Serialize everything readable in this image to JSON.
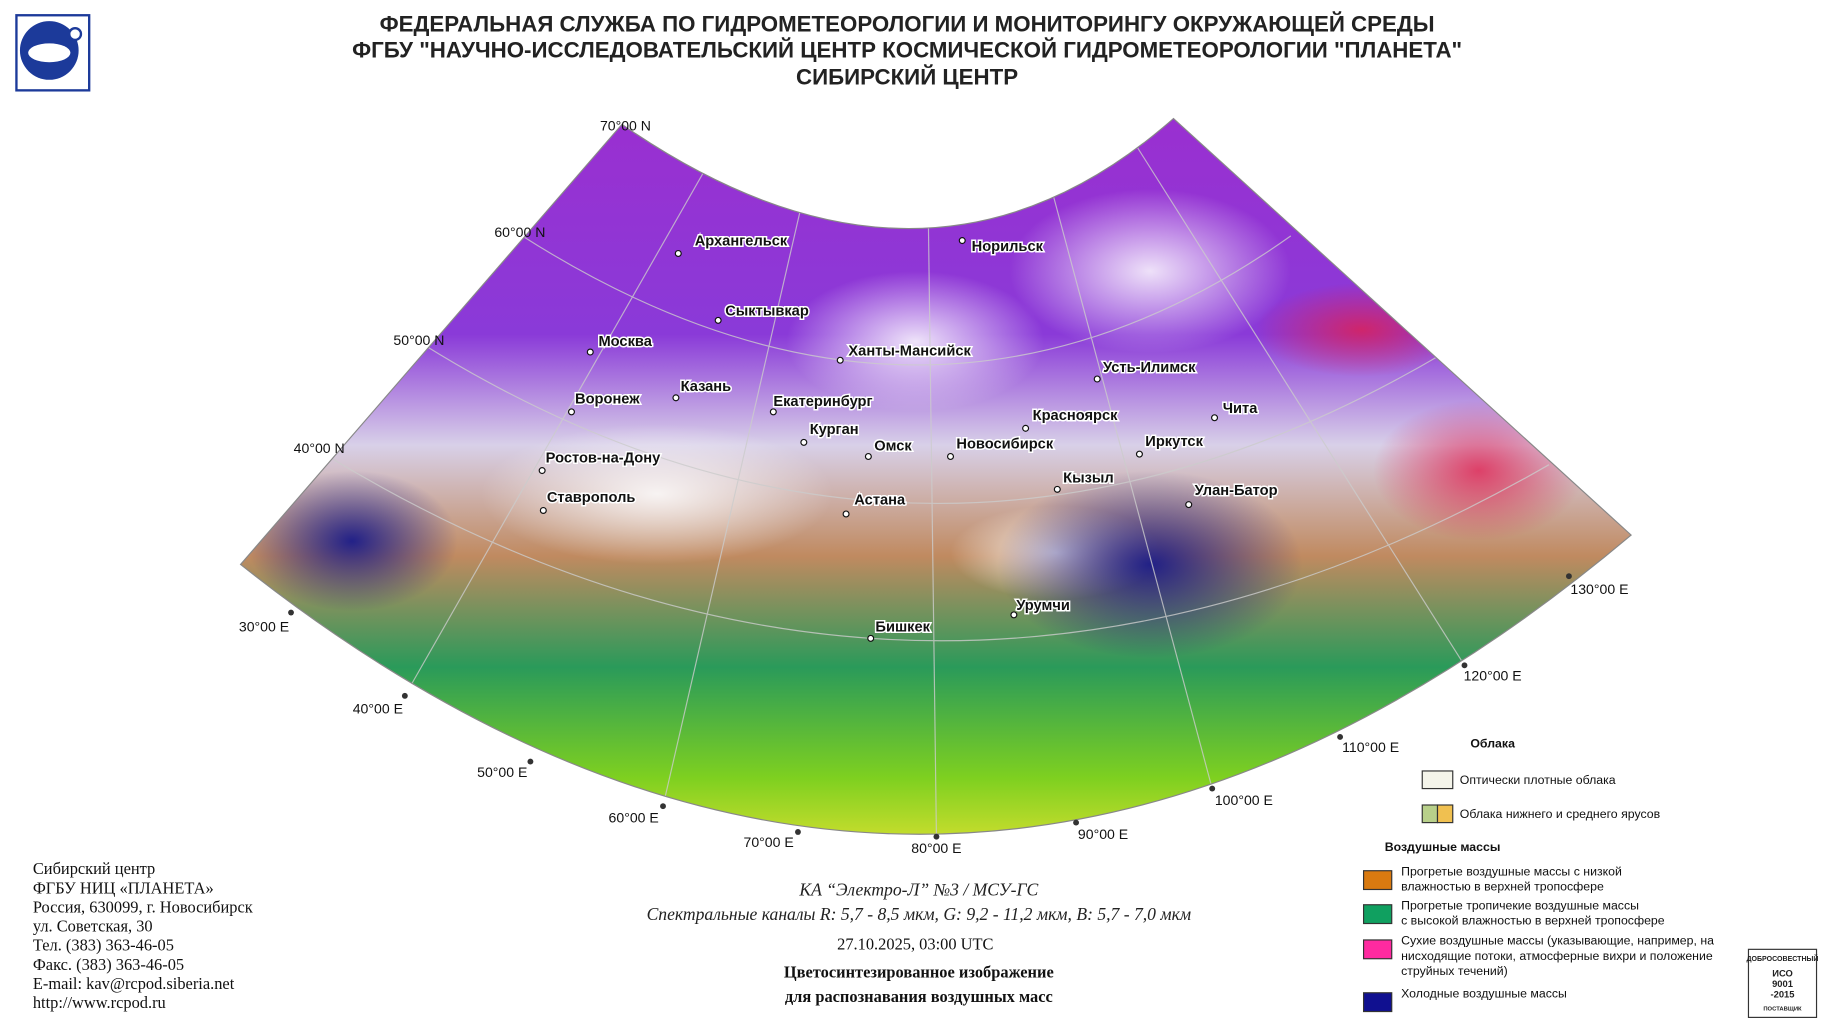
{
  "header": {
    "lines": [
      "ФЕДЕРАЛЬНАЯ СЛУЖБА ПО ГИДРОМЕТЕОРОЛОГИИ И МОНИТОРИНГУ ОКРУЖАЮЩЕЙ СРЕДЫ",
      "ФГБУ \"НАУЧНО-ИССЛЕДОВАТЕЛЬСКИЙ ЦЕНТР КОСМИЧЕСКОЙ ГИДРОМЕТЕОРОЛОГИИ \"ПЛАНЕТА\"",
      "СИБИРСКИЙ ЦЕНТР"
    ]
  },
  "map": {
    "latitude_labels": [
      "70°00 N",
      "60°00 N",
      "50°00 N",
      "40°00 N"
    ],
    "longitude_labels": [
      "30°00 E",
      "40°00 E",
      "50°00 E",
      "60°00 E",
      "70°00 E",
      "80°00 E",
      "90°00 E",
      "100°00 E",
      "110°00 E",
      "120°00 E",
      "130°00 E"
    ],
    "cities": [
      "Архангельск",
      "Сыктывкар",
      "Москва",
      "Казань",
      "Воронеж",
      "Ханты-Мансийск",
      "Норильск",
      "Екатеринбург",
      "Курган",
      "Омск",
      "Новосибирск",
      "Красноярск",
      "Усть-Илимск",
      "Иркутск",
      "Чита",
      "Кызыл",
      "Улан-Батор",
      "Ростов-на-Дону",
      "Ставрополь",
      "Астана",
      "Урумчи",
      "Бишкек"
    ]
  },
  "legend": {
    "clouds_title": "Облака",
    "clouds": [
      [
        "Оптически плотные облака"
      ],
      [
        "Облака нижнего и среднего ярусов"
      ]
    ],
    "air_masses_title": "Воздушные массы",
    "air_masses": [
      [
        "Прогретые воздушные массы с низкой",
        "влажностью в верхней тропосфере"
      ],
      [
        "Прогретые тропичекие воздушные массы",
        "с высокой влажностью в верхней тропосфере"
      ],
      [
        "Сухие воздушные массы (указывающие, например, на",
        "нисходящие потоки, атмосферные вихри и положение",
        "струйных течений)"
      ],
      [
        "Холодные воздушные массы"
      ]
    ]
  },
  "caption": {
    "satellite": "КА “Электро-Л” №3 / МСУ-ГС",
    "channels": "Спектральные каналы R: 5,7 - 8,5 мкм, G: 9,2 - 11,2 мкм, B: 5,7 - 7,0 мкм",
    "datetime": "27.10.2025, 03:00 UTC",
    "title_lines": [
      "Цветосинтезированное изображение",
      "для распознавания воздушных масс"
    ]
  },
  "contact": {
    "lines": [
      "Сибирский центр",
      "ФГБУ НИЦ «ПЛАНЕТА»",
      "Россия, 630099, г. Новосибирск",
      "ул. Советская, 30",
      "Тел. (383) 363-46-05",
      "Факс. (383) 363-46-05",
      "E-mail: kav@rcpod.siberia.net",
      "http://www.rcpod.ru"
    ]
  },
  "certificate": {
    "lines": [
      "ДОБРОСОВЕСТНЫЙ",
      "ИСО",
      "9001",
      "-2015",
      "ПОСТАВЩИК"
    ]
  }
}
